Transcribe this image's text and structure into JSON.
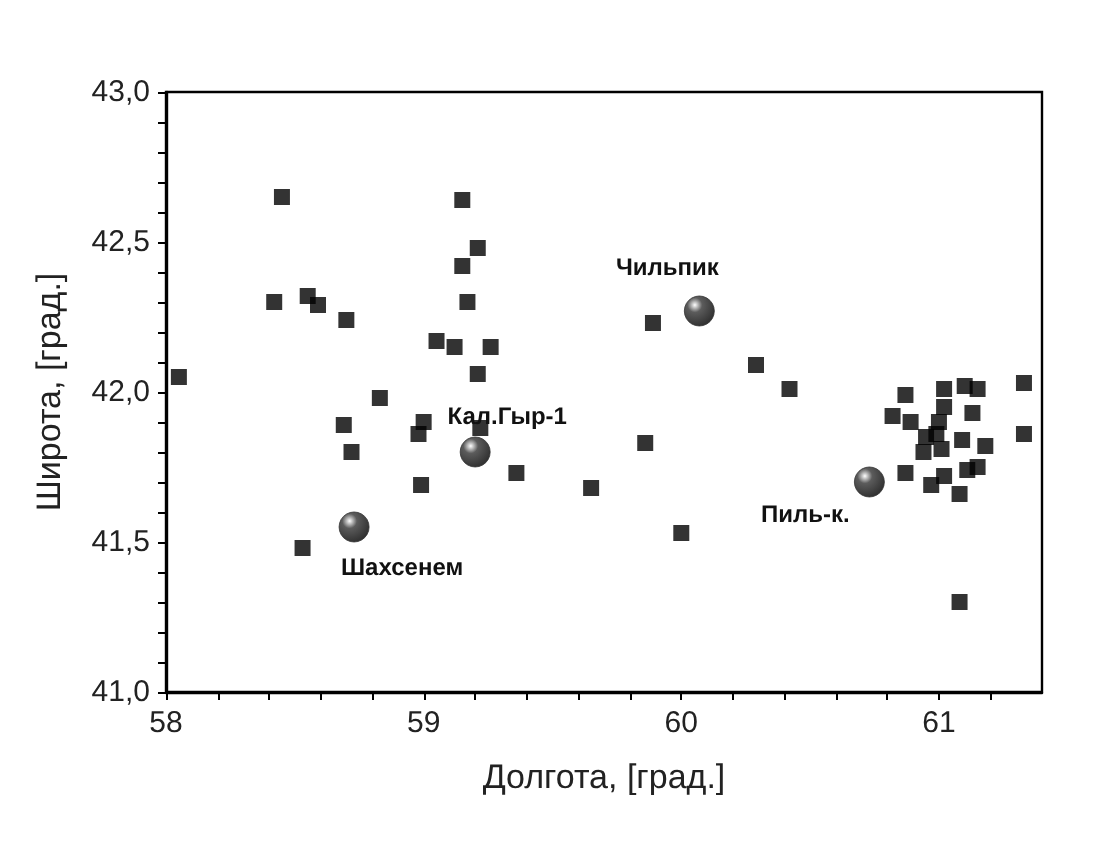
{
  "chart_data": {
    "type": "scatter",
    "xlabel": "Долгота, [град.]",
    "ylabel": "Широта, [град.]",
    "xlim": [
      58,
      61.4
    ],
    "ylim": [
      41,
      43
    ],
    "xticks": [
      58,
      {
        "value": 58.2,
        "label": null
      },
      {
        "value": 58.4,
        "label": null
      },
      {
        "value": 58.6,
        "label": null
      },
      {
        "value": 58.8,
        "label": null
      },
      59,
      {
        "value": 59.2,
        "label": null
      },
      {
        "value": 59.4,
        "label": null
      },
      {
        "value": 59.6,
        "label": null
      },
      {
        "value": 59.8,
        "label": null
      },
      60,
      {
        "value": 60.2,
        "label": null
      },
      {
        "value": 60.4,
        "label": null
      },
      {
        "value": 60.6,
        "label": null
      },
      {
        "value": 60.8,
        "label": null
      },
      61,
      {
        "value": 61.2,
        "label": null
      }
    ],
    "yticks": [
      {
        "value": 41,
        "label": "41,0"
      },
      {
        "value": 41.1,
        "label": null
      },
      {
        "value": 41.2,
        "label": null
      },
      {
        "value": 41.3,
        "label": null
      },
      {
        "value": 41.4,
        "label": null
      },
      {
        "value": 41.5,
        "label": "41,5"
      },
      {
        "value": 41.6,
        "label": null
      },
      {
        "value": 41.7,
        "label": null
      },
      {
        "value": 41.8,
        "label": null
      },
      {
        "value": 41.9,
        "label": null
      },
      {
        "value": 42,
        "label": "42,0"
      },
      {
        "value": 42.1,
        "label": null
      },
      {
        "value": 42.2,
        "label": null
      },
      {
        "value": 42.3,
        "label": null
      },
      {
        "value": 42.4,
        "label": null
      },
      {
        "value": 42.5,
        "label": "42,5"
      },
      {
        "value": 42.6,
        "label": null
      },
      {
        "value": 42.7,
        "label": null
      },
      {
        "value": 42.8,
        "label": null
      },
      {
        "value": 42.9,
        "label": null
      },
      {
        "value": 43,
        "label": "43,0"
      }
    ],
    "grid": false,
    "series": [
      {
        "color": "#000000",
        "marker": "square",
        "x": [
          58.45,
          59.15,
          59.21,
          59.15,
          58.42,
          58.55,
          58.59,
          58.7,
          59.17,
          59.05,
          59.12,
          59.26,
          59.21,
          58.05,
          58.83,
          58.69,
          59.0,
          58.98,
          59.22,
          58.72,
          59.36,
          59.65,
          58.99,
          58.53,
          59.89,
          60.29,
          60.42,
          59.86,
          60.0,
          61.08,
          61.02,
          61.1,
          61.15,
          60.87,
          60.82,
          60.89,
          61.02,
          61.13,
          61.0,
          60.99,
          60.95,
          61.18,
          61.09,
          61.01,
          60.94,
          60.87,
          61.02,
          60.97,
          61.11,
          61.15,
          61.08,
          61.33,
          61.33
        ],
        "values": [
          42.65,
          42.64,
          42.48,
          42.42,
          42.3,
          42.32,
          42.29,
          42.24,
          42.3,
          42.17,
          42.15,
          42.15,
          42.06,
          42.05,
          41.98,
          41.89,
          41.9,
          41.86,
          41.88,
          41.8,
          41.73,
          41.68,
          41.69,
          41.48,
          42.23,
          42.09,
          42.01,
          41.83,
          41.53,
          41.3,
          42.01,
          42.02,
          42.01,
          41.99,
          41.92,
          41.9,
          41.95,
          41.93,
          41.9,
          41.86,
          41.85,
          41.82,
          41.84,
          41.81,
          41.8,
          41.73,
          41.72,
          41.69,
          41.74,
          41.75,
          41.66,
          42.03,
          41.86
        ]
      },
      {
        "color": "#333333",
        "marker": "circle",
        "x": [
          58.73,
          59.2,
          60.07,
          60.73
        ],
        "values": [
          41.55,
          41.8,
          42.27,
          41.7
        ]
      }
    ],
    "annotations": [
      {
        "text": "Шахсенем",
        "x": 58.73,
        "y": 41.55
      },
      {
        "text": "Кал.Гыр-1",
        "x": 59.2,
        "y": 41.8
      },
      {
        "text": "Чильпик",
        "x": 60.07,
        "y": 42.27
      },
      {
        "text": "Пиль-к.",
        "x": 60.73,
        "y": 41.7
      }
    ]
  }
}
